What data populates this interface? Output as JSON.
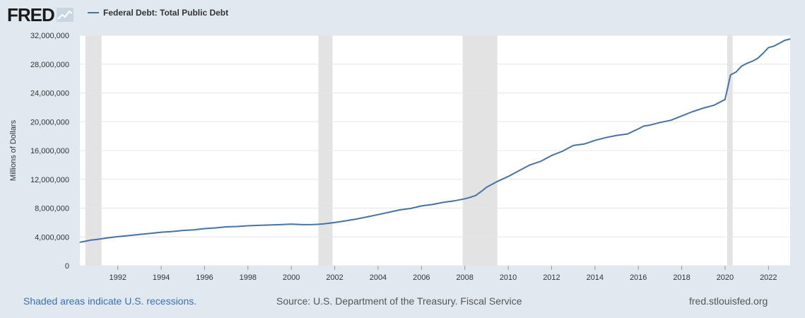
{
  "header": {
    "logo_text": "FRED",
    "legend_label": "Federal Debt: Total Public Debt"
  },
  "footer": {
    "recession_note": "Shaded areas indicate U.S. recessions.",
    "source": "Source: U.S. Department of the Treasury. Fiscal Service",
    "site": "fred.stlouisfed.org"
  },
  "colors": {
    "series": "#4572a7",
    "recession": "#e3e3e3",
    "background": "#e1e9f0",
    "plot": "#ffffff"
  },
  "chart_data": {
    "type": "line",
    "title": "",
    "xlabel": "",
    "ylabel": "Millions of Dollars",
    "xlim": [
      1990.25,
      2023.0
    ],
    "ylim": [
      0,
      32000000
    ],
    "y_ticks": [
      0,
      4000000,
      8000000,
      12000000,
      16000000,
      20000000,
      24000000,
      28000000,
      32000000
    ],
    "y_tick_labels": [
      "0",
      "4,000,000",
      "8,000,000",
      "12,000,000",
      "16,000,000",
      "20,000,000",
      "24,000,000",
      "28,000,000",
      "32,000,000"
    ],
    "x_ticks": [
      1992,
      1994,
      1996,
      1998,
      2000,
      2002,
      2004,
      2006,
      2008,
      2010,
      2012,
      2014,
      2016,
      2018,
      2020,
      2022
    ],
    "x_tick_labels": [
      "1992",
      "1994",
      "1996",
      "1998",
      "2000",
      "2002",
      "2004",
      "2006",
      "2008",
      "2010",
      "2012",
      "2014",
      "2016",
      "2018",
      "2020",
      "2022"
    ],
    "grid": true,
    "recessions": [
      [
        1990.5,
        1991.25
      ],
      [
        2001.25,
        2001.9
      ],
      [
        2007.9,
        2009.5
      ],
      [
        2020.1,
        2020.35
      ]
    ],
    "series": [
      {
        "name": "Federal Debt: Total Public Debt",
        "x": [
          1990.25,
          1990.5,
          1990.75,
          1991.0,
          1991.5,
          1992.0,
          1992.5,
          1993.0,
          1993.5,
          1994.0,
          1994.5,
          1995.0,
          1995.5,
          1996.0,
          1996.5,
          1997.0,
          1997.5,
          1998.0,
          1998.5,
          1999.0,
          1999.5,
          2000.0,
          2000.5,
          2001.0,
          2001.25,
          2001.5,
          2002.0,
          2002.5,
          2003.0,
          2003.5,
          2004.0,
          2004.5,
          2005.0,
          2005.5,
          2006.0,
          2006.5,
          2007.0,
          2007.5,
          2008.0,
          2008.25,
          2008.5,
          2008.75,
          2009.0,
          2009.5,
          2010.0,
          2010.5,
          2011.0,
          2011.5,
          2012.0,
          2012.5,
          2013.0,
          2013.5,
          2014.0,
          2014.5,
          2015.0,
          2015.5,
          2016.0,
          2016.25,
          2016.5,
          2017.0,
          2017.5,
          2018.0,
          2018.5,
          2019.0,
          2019.5,
          2019.75,
          2020.0,
          2020.25,
          2020.5,
          2020.75,
          2021.0,
          2021.25,
          2021.5,
          2021.75,
          2022.0,
          2022.25,
          2022.5,
          2022.75,
          2023.0
        ],
        "values": [
          3260000,
          3400000,
          3550000,
          3630000,
          3850000,
          4030000,
          4180000,
          4350000,
          4500000,
          4650000,
          4750000,
          4900000,
          4990000,
          5150000,
          5250000,
          5400000,
          5450000,
          5550000,
          5600000,
          5650000,
          5700000,
          5780000,
          5700000,
          5720000,
          5750000,
          5820000,
          6000000,
          6230000,
          6480000,
          6780000,
          7100000,
          7420000,
          7750000,
          7950000,
          8300000,
          8500000,
          8800000,
          9000000,
          9300000,
          9500000,
          9750000,
          10300000,
          10900000,
          11700000,
          12400000,
          13200000,
          14000000,
          14500000,
          15300000,
          15900000,
          16700000,
          16900000,
          17400000,
          17800000,
          18100000,
          18300000,
          19000000,
          19400000,
          19500000,
          19900000,
          20200000,
          20800000,
          21400000,
          21900000,
          22300000,
          22700000,
          23100000,
          26500000,
          26900000,
          27700000,
          28100000,
          28400000,
          28800000,
          29500000,
          30300000,
          30500000,
          30900000,
          31300000,
          31500000
        ]
      }
    ]
  }
}
